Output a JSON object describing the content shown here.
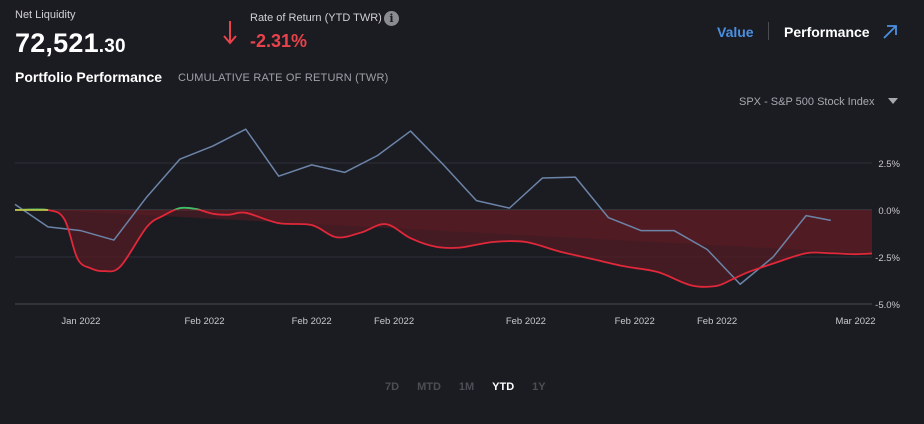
{
  "header": {
    "net_liquidity_label": "Net Liquidity",
    "net_liquidity_whole": "72,521",
    "net_liquidity_decimal": ".30",
    "rate_label": "Rate of Return (YTD TWR)",
    "rate_value": "-2.31%",
    "view_value": "Value",
    "view_performance": "Performance"
  },
  "section": {
    "title": "Portfolio Performance",
    "subtitle": "CUMULATIVE RATE OF RETURN (TWR)"
  },
  "benchmark": {
    "label": "SPX - S&P 500 Stock Index"
  },
  "ranges": [
    "7D",
    "MTD",
    "1M",
    "YTD",
    "1Y"
  ],
  "active_range": "YTD",
  "colors": {
    "accent": "#4a90e2",
    "negative": "#e8424a",
    "portfolio_line": "#e0283a",
    "portfolio_line_positive": "#35c46a",
    "benchmark_line": "#6c84a8",
    "area_fill": "#5a1c24"
  },
  "chart_data": {
    "type": "line",
    "title": "Portfolio Performance",
    "subtitle": "CUMULATIVE RATE OF RETURN (TWR)",
    "ylim": [
      -5.0,
      2.5
    ],
    "y_ticks": [
      "2.5%",
      "0.0%",
      "-2.5%",
      "-5.0%"
    ],
    "y_tick_values": [
      2.5,
      0.0,
      -2.5,
      -5.0
    ],
    "x_tick_labels": [
      "Jan 2022",
      "Feb 2022",
      "Feb 2022",
      "Feb 2022",
      "Feb 2022",
      "Feb 2022",
      "Feb 2022",
      "Mar 2022"
    ],
    "x_tick_positions": [
      4,
      11.5,
      18,
      23,
      31,
      37.6,
      42.6,
      51
    ],
    "x_range": [
      0,
      52
    ],
    "series": [
      {
        "name": "SPX - S&P 500 Stock Index",
        "x": [
          0,
          2,
          4,
          6,
          8,
          10,
          12,
          14,
          16,
          18,
          20,
          22,
          24,
          26,
          28,
          30,
          32,
          34,
          36,
          38,
          40,
          42,
          44,
          46,
          48,
          49.5
        ],
        "values": [
          0.3,
          -0.9,
          -1.1,
          -1.6,
          0.7,
          2.7,
          3.4,
          4.3,
          1.8,
          2.4,
          2.0,
          2.9,
          4.2,
          2.4,
          0.5,
          0.1,
          1.7,
          1.75,
          -0.4,
          -1.1,
          -1.1,
          -2.1,
          -3.95,
          -2.5,
          -0.3,
          -0.55
        ]
      },
      {
        "name": "Portfolio",
        "x": [
          0,
          2,
          3,
          3.8,
          4.6,
          5.4,
          6.4,
          8,
          9,
          10,
          11,
          12,
          13,
          14,
          16,
          18,
          19.5,
          21,
          22.5,
          24,
          25.5,
          27,
          29,
          31,
          33,
          35,
          37,
          39,
          41,
          42.5,
          43.5,
          44.5,
          46,
          48,
          49.5,
          51,
          52
        ],
        "values": [
          0.0,
          0.0,
          -0.5,
          -2.6,
          -3.1,
          -3.25,
          -3.0,
          -0.9,
          -0.3,
          0.1,
          0.05,
          -0.2,
          -0.25,
          -0.15,
          -0.7,
          -0.8,
          -1.45,
          -1.2,
          -0.75,
          -1.5,
          -1.95,
          -2.0,
          -1.7,
          -1.7,
          -2.2,
          -2.6,
          -3.0,
          -3.3,
          -4.0,
          -4.05,
          -3.7,
          -3.3,
          -2.85,
          -2.3,
          -2.3,
          -2.35,
          -2.31
        ]
      }
    ]
  }
}
